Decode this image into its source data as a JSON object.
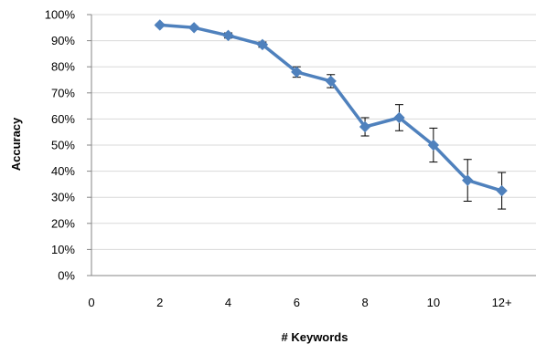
{
  "chart_data": {
    "type": "line",
    "xlabel": "# Keywords",
    "ylabel": "Accuracy",
    "x_range": [
      0,
      13
    ],
    "ylim": [
      0,
      100
    ],
    "x_ticks": [
      {
        "value": 0,
        "label": "0"
      },
      {
        "value": 2,
        "label": "2"
      },
      {
        "value": 4,
        "label": "4"
      },
      {
        "value": 6,
        "label": "6"
      },
      {
        "value": 8,
        "label": "8"
      },
      {
        "value": 10,
        "label": "10"
      },
      {
        "value": 12,
        "label": "12+"
      }
    ],
    "y_ticks": [
      {
        "value": 0,
        "label": "0%"
      },
      {
        "value": 10,
        "label": "10%"
      },
      {
        "value": 20,
        "label": "20%"
      },
      {
        "value": 30,
        "label": "30%"
      },
      {
        "value": 40,
        "label": "40%"
      },
      {
        "value": 50,
        "label": "50%"
      },
      {
        "value": 60,
        "label": "60%"
      },
      {
        "value": 70,
        "label": "70%"
      },
      {
        "value": 80,
        "label": "80%"
      },
      {
        "value": 90,
        "label": "90%"
      },
      {
        "value": 100,
        "label": "100%"
      }
    ],
    "grid": {
      "horizontal": true,
      "vertical": false
    },
    "series": [
      {
        "color": "#4F81BD",
        "marker": "diamond",
        "x": [
          2,
          3,
          4,
          5,
          6,
          7,
          8,
          9,
          10,
          11,
          12
        ],
        "y": [
          96,
          95,
          92,
          88.5,
          78,
          74.5,
          57,
          60.5,
          50,
          36.5,
          32.5
        ],
        "error": [
          0.5,
          0.5,
          1,
          1,
          2,
          2.5,
          3.5,
          5,
          6.5,
          8,
          7
        ]
      }
    ]
  }
}
